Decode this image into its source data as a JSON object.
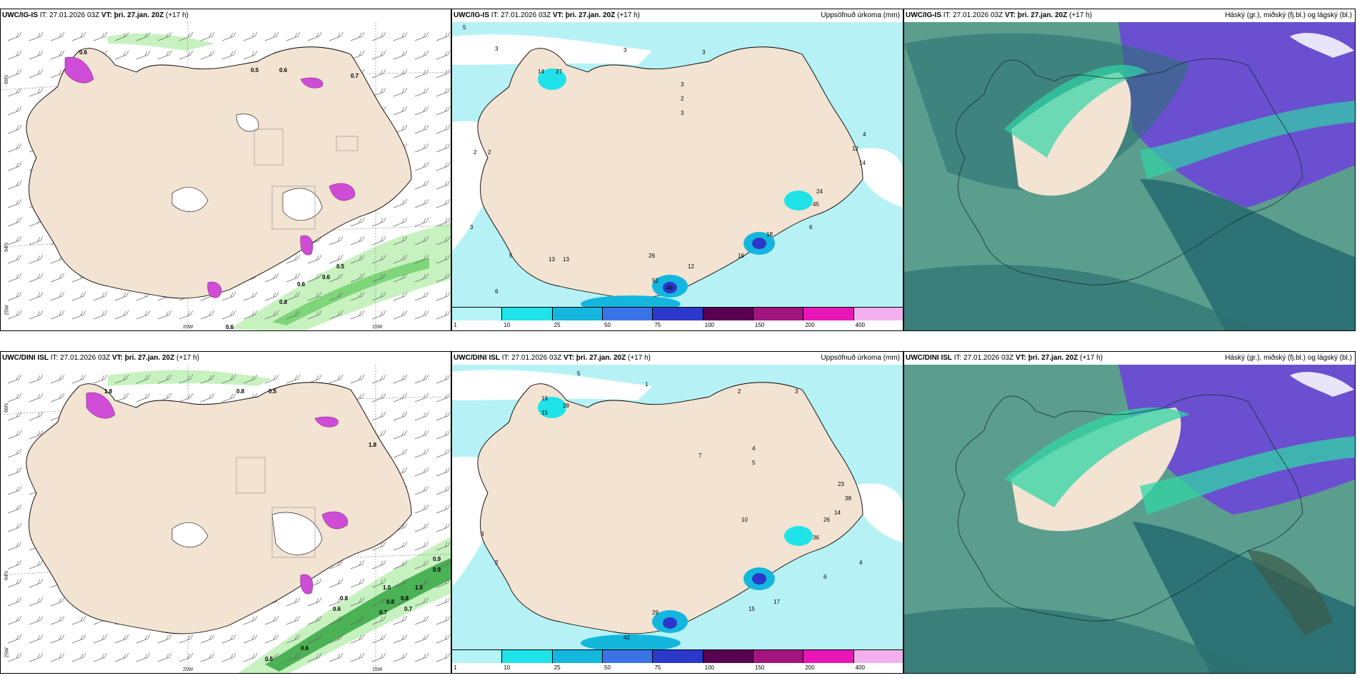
{
  "panels": {
    "p1": {
      "title_model": "UWC/IG-IS",
      "title_it": "IT: 27.01.2026 03Z",
      "title_vt": "VT: þri. 27.jan. 20Z",
      "title_lead": "(+17 h)",
      "lat_labels": [
        "66N",
        "64N",
        "25W"
      ],
      "lon_labels": [
        "20W",
        "15W"
      ],
      "values": [
        "0.6",
        "0.5",
        "0.6",
        "0.7",
        "0.6",
        "0.5",
        "0.6",
        "0.8",
        "0.6"
      ]
    },
    "p2": {
      "title_model": "UWC/IG-IS",
      "title_it": "IT: 27.01.2026 03Z",
      "title_vt": "VT: þri. 27.jan. 20Z",
      "title_lead": "(+17 h)",
      "right_label": "Uppsöfnuð úrkoma (mm)",
      "values": [
        "5",
        "3",
        "3",
        "3",
        "14",
        "27",
        "3",
        "2",
        "3",
        "2",
        "2",
        "3",
        "5",
        "4",
        "12",
        "14",
        "16",
        "18",
        "13",
        "13",
        "52",
        "49",
        "26",
        "12",
        "45",
        "24",
        "6",
        "6"
      ]
    },
    "p3": {
      "title_model": "UWC/IG-IS",
      "title_it": "IT: 27.01.2026 03Z",
      "title_vt": "VT: þri. 27.jan. 20Z",
      "title_lead": "(+17 h)",
      "right_label": "Háský (gr.), miðský (fj.bl.) og lágský (bl.)"
    },
    "p4": {
      "title_model": "UWC/DINI ISL",
      "title_it": "IT: 27.01.2026 03Z",
      "title_vt": "VT: þri. 27.jan. 20Z",
      "title_lead": "(+17 h)",
      "lat_labels": [
        "66N",
        "64N",
        "25W"
      ],
      "lon_labels": [
        "20W",
        "15W"
      ],
      "values": [
        "1.8",
        "0.8",
        "0.5",
        "1.8",
        "0.9",
        "1.0",
        "0.8",
        "0.7",
        "1.0",
        "0.8",
        "0.7",
        "0.6",
        "0.8",
        "0.6",
        "0.5",
        "0.9"
      ]
    },
    "p5": {
      "title_model": "UWC/DINI ISL",
      "title_it": "IT: 27.01.2026 03Z",
      "title_vt": "VT: þri. 27.jan. 20Z",
      "title_lead": "(+17 h)",
      "right_label": "Uppsöfnuð úrkoma (mm)",
      "values": [
        "5",
        "1",
        "2",
        "3",
        "19",
        "28",
        "15",
        "4",
        "5",
        "7",
        "3",
        "2",
        "10",
        "14",
        "26",
        "36",
        "23",
        "38",
        "17",
        "15",
        "29",
        "42",
        "4",
        "6"
      ]
    },
    "p6": {
      "title_model": "UWC/DINI ISL",
      "title_it": "IT: 27.01.2026 03Z",
      "title_vt": "VT: þri. 27.jan. 20Z",
      "title_lead": "(+17 h)",
      "right_label": "Háský (gr.), miðský (fj.bl.) og lágský (bl.)"
    }
  },
  "colorbar": {
    "labels": [
      "1",
      "10",
      "25",
      "50",
      "75",
      "100",
      "150",
      "200",
      "400"
    ],
    "colors": [
      "#b4f4f6",
      "#1fe3e8",
      "#14b6de",
      "#3a73e6",
      "#2b38c9",
      "#5a0050",
      "#a3157e",
      "#e816b6",
      "#f3b0ee"
    ]
  },
  "colors": {
    "land": "#f3e3d2",
    "precip_light": "#b6f2f5",
    "sea_cloud": "#5b9e8d",
    "high_cloud": "#6a4fd0"
  }
}
